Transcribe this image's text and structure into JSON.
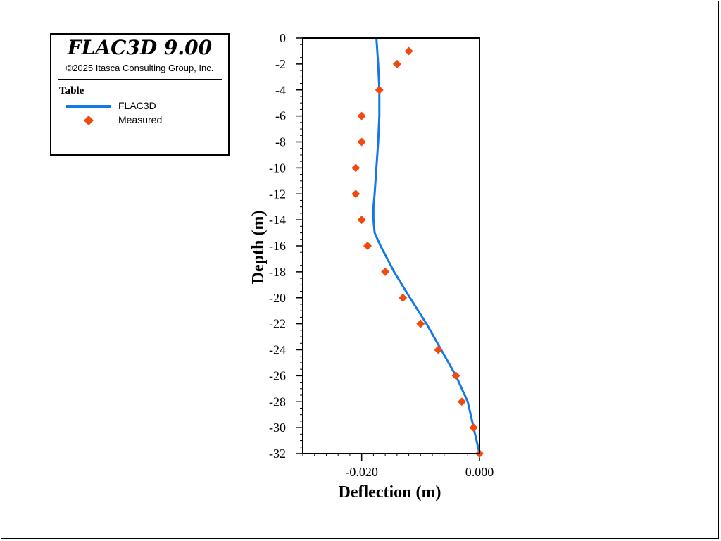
{
  "legend": {
    "title": "FLAC3D 9.00",
    "copyright": "©2025 Itasca Consulting Group, Inc.",
    "table_label": "Table",
    "entries": [
      "FLAC3D",
      "Measured"
    ]
  },
  "colors": {
    "flac3d": "#1479e6",
    "measured": "#f04a10"
  },
  "chart_data": {
    "type": "line",
    "xlabel": "Deflection (m)",
    "ylabel": "Depth (m)",
    "xlim": [
      -0.03,
      0.0
    ],
    "ylim": [
      -32,
      0
    ],
    "x_ticks": [
      -0.02,
      0.0
    ],
    "x_tick_labels": [
      "-0.020",
      "0.000"
    ],
    "y_ticks": [
      0,
      -2,
      -4,
      -6,
      -8,
      -10,
      -12,
      -14,
      -16,
      -18,
      -20,
      -22,
      -24,
      -26,
      -28,
      -30,
      -32
    ],
    "y_tick_labels": [
      "0",
      "-2",
      "-4",
      "-6",
      "-8",
      "-10",
      "-12",
      "-14",
      "-16",
      "-18",
      "-20",
      "-22",
      "-24",
      "-26",
      "-28",
      "-30",
      "-32"
    ],
    "series": [
      {
        "name": "FLAC3D",
        "type": "line",
        "x": [
          -0.0175,
          -0.0172,
          -0.017,
          -0.017,
          -0.0172,
          -0.0175,
          -0.0178,
          -0.018,
          -0.018,
          -0.0178,
          -0.0168,
          -0.0145,
          -0.0118,
          -0.009,
          -0.0065,
          -0.004,
          -0.002,
          0.0
        ],
        "y": [
          0,
          -2,
          -4,
          -6,
          -8,
          -10,
          -12,
          -13,
          -14,
          -15,
          -16,
          -18,
          -20,
          -22,
          -24,
          -26,
          -28,
          -32
        ]
      },
      {
        "name": "Measured",
        "type": "scatter",
        "x": [
          -0.012,
          -0.014,
          -0.017,
          -0.02,
          -0.02,
          -0.021,
          -0.021,
          -0.02,
          -0.019,
          -0.016,
          -0.013,
          -0.01,
          -0.007,
          -0.004,
          -0.003,
          -0.001,
          0.0
        ],
        "y": [
          -1,
          -2,
          -4,
          -6,
          -8,
          -10,
          -12,
          -14,
          -16,
          -18,
          -20,
          -22,
          -24,
          -26,
          -28,
          -30,
          -32
        ]
      }
    ]
  }
}
